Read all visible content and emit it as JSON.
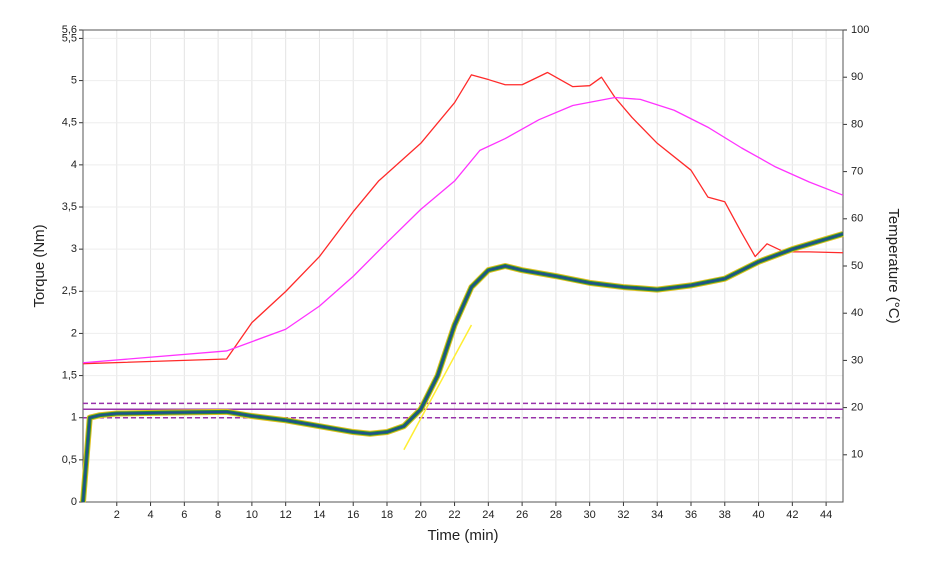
{
  "chart_data": {
    "type": "line",
    "x_label": "Time (min)",
    "y_label": "Torque (Nm)",
    "y2_label": "Temperature (°C)",
    "xlim": [
      0,
      45
    ],
    "xticks": [
      2,
      4,
      6,
      8,
      10,
      12,
      14,
      16,
      18,
      20,
      22,
      24,
      26,
      28,
      30,
      32,
      34,
      36,
      38,
      40,
      42,
      44
    ],
    "ylim": [
      0,
      5.6
    ],
    "yticks": [
      0,
      {
        "value": 0.5,
        "label": "0,5"
      },
      1,
      {
        "value": 1.5,
        "label": "1,5"
      },
      2,
      {
        "value": 2.5,
        "label": "2,5"
      },
      3,
      {
        "value": 3.5,
        "label": "3,5"
      },
      4,
      {
        "value": 4.5,
        "label": "4,5"
      },
      5,
      {
        "value": 5.5,
        "label": "5,5"
      },
      {
        "value": 5.6,
        "label": "5,6"
      }
    ],
    "y2lim": [
      0,
      100
    ],
    "y2ticks": [
      10,
      20,
      30,
      40,
      50,
      60,
      70,
      80,
      90,
      100
    ],
    "grid": true,
    "series": [
      {
        "color": "#ff2a2a",
        "axis": "y2",
        "x": [
          0,
          8.5,
          10,
          12,
          14,
          16,
          17.5,
          20,
          22,
          23,
          24,
          25,
          26,
          27.5,
          29,
          30,
          30.7,
          31.5,
          32.5,
          34,
          36,
          37,
          38,
          39,
          39.8,
          40.5,
          41.5,
          43,
          45
        ],
        "values": [
          29.3,
          30.3,
          38,
          44.6,
          52,
          61.5,
          68,
          76,
          84.6,
          90.5,
          89.5,
          88.4,
          88.4,
          91,
          88,
          88.2,
          90,
          85.7,
          81.5,
          76,
          70.3,
          64.6,
          63.6,
          57,
          52,
          54.7,
          53,
          53,
          52.8
        ]
      },
      {
        "color": "#ff33ff",
        "axis": "y2",
        "x": [
          0,
          8.5,
          12,
          14,
          16,
          18,
          20,
          22,
          23.5,
          25,
          27,
          29,
          31.5,
          33,
          35,
          37,
          39,
          41,
          43,
          45
        ],
        "values": [
          29.5,
          32,
          36.6,
          41.5,
          47.8,
          55,
          62,
          68,
          74.5,
          77,
          81,
          84,
          85.7,
          85.3,
          83,
          79.4,
          75,
          71,
          67.8,
          65
        ]
      },
      {
        "color": "#1f4f8f",
        "axis": "y",
        "x": [
          0,
          0.4,
          1,
          2,
          5,
          8.5,
          10,
          12,
          14,
          16,
          17,
          18,
          19,
          20,
          21,
          22,
          23,
          24,
          25,
          26,
          28,
          30,
          32,
          34,
          36,
          38,
          40,
          42,
          44,
          45
        ],
        "values": [
          0,
          1.0,
          1.03,
          1.05,
          1.06,
          1.07,
          1.02,
          0.97,
          0.9,
          0.83,
          0.81,
          0.83,
          0.9,
          1.1,
          1.5,
          2.1,
          2.55,
          2.75,
          2.8,
          2.75,
          2.68,
          2.6,
          2.55,
          2.52,
          2.57,
          2.65,
          2.85,
          3.0,
          3.12,
          3.18
        ]
      }
    ],
    "tangent": {
      "color": "#ffee33",
      "x": [
        19,
        23
      ],
      "values": [
        0.62,
        2.1
      ]
    },
    "reference_lines": [
      {
        "value": 1.17,
        "style": "dashed",
        "color": "#9933aa"
      },
      {
        "value": 1.1,
        "style": "solid",
        "color": "#9933aa"
      },
      {
        "value": 1.0,
        "style": "dashed",
        "color": "#9933aa"
      }
    ]
  }
}
